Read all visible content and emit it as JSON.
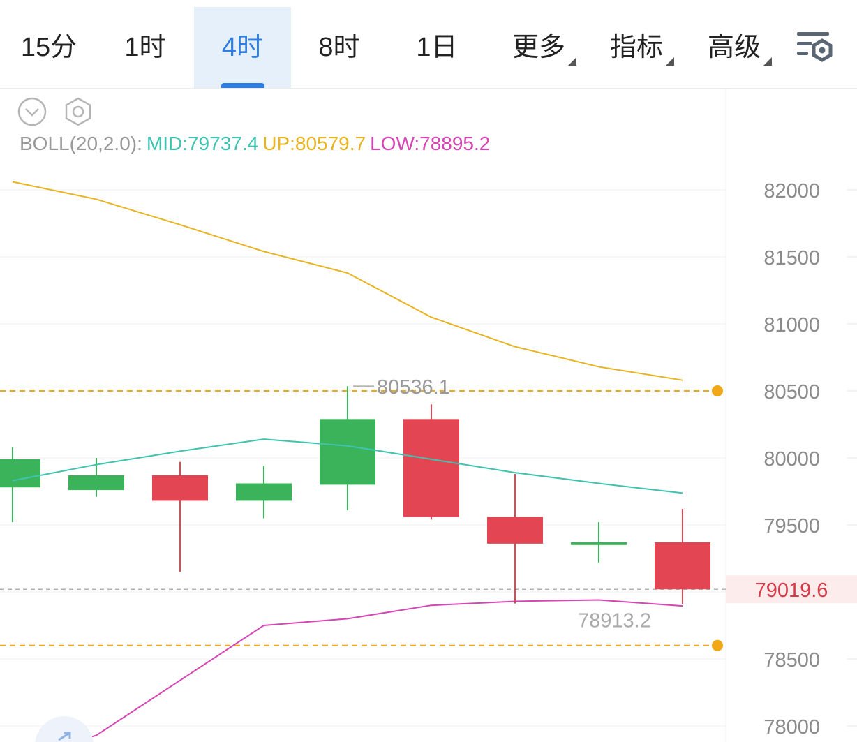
{
  "tabs": [
    {
      "label": "15分",
      "active": false,
      "dropdown": false
    },
    {
      "label": "1时",
      "active": false,
      "dropdown": false
    },
    {
      "label": "4时",
      "active": true,
      "dropdown": false
    },
    {
      "label": "8时",
      "active": false,
      "dropdown": false
    },
    {
      "label": "1日",
      "active": false,
      "dropdown": false
    },
    {
      "label": "更多",
      "active": false,
      "dropdown": true
    },
    {
      "label": "指标",
      "active": false,
      "dropdown": true
    },
    {
      "label": "高级",
      "active": false,
      "dropdown": true
    }
  ],
  "toolbar": {
    "collapse_icon": "chevron-down-circle-icon",
    "settings_icon": "hexagon-settings-icon",
    "chart_settings_icon": "chart-settings-icon"
  },
  "legend": {
    "boll_label": "BOLL(20,2.0):",
    "mid_label": "MID:79737.4",
    "up_label": "UP:80579.7",
    "low_label": "LOW:78895.2"
  },
  "colors": {
    "up_candle": "#3bb35a",
    "down_candle": "#e34652",
    "mid": "#3fc3b0",
    "upper": "#e8b320",
    "lower": "#d446b4",
    "accent": "#2f7de1",
    "current_price": "#d63b47",
    "dashed_line": "#f0a818"
  },
  "chart_data": {
    "type": "candlestick",
    "y_axis": {
      "ticks": [
        82000,
        81500,
        81000,
        80500,
        80000,
        79500,
        79000,
        78500,
        78000
      ],
      "tick_labels": [
        "82000",
        "81500",
        "81000",
        "80500",
        "80000",
        "79500",
        "",
        "78500",
        "78000"
      ],
      "range": [
        77900,
        82300
      ]
    },
    "candles": [
      {
        "open": 79780,
        "close": 79990,
        "high": 80080,
        "low": 79520
      },
      {
        "open": 79760,
        "close": 79870,
        "high": 80000,
        "low": 79710
      },
      {
        "open": 79870,
        "close": 79680,
        "high": 79970,
        "low": 79150
      },
      {
        "open": 79680,
        "close": 79810,
        "high": 79940,
        "low": 79550
      },
      {
        "open": 79800,
        "close": 80290,
        "high": 80536.1,
        "low": 79610
      },
      {
        "open": 80290,
        "close": 79560,
        "high": 80400,
        "low": 79540
      },
      {
        "open": 79560,
        "close": 79360,
        "high": 79880,
        "low": 78913.2
      },
      {
        "open": 79350,
        "close": 79370,
        "high": 79520,
        "low": 79220
      },
      {
        "open": 79370,
        "close": 79019.6,
        "high": 79620,
        "low": 78910
      }
    ],
    "bollinger": {
      "mid": [
        79830,
        79950,
        80050,
        80140,
        80090,
        79990,
        79890,
        79810,
        79737.4
      ],
      "upper": [
        82060,
        81930,
        81740,
        81540,
        81380,
        81050,
        80830,
        80680,
        80579.7
      ],
      "lower": [
        77740,
        77930,
        78340,
        78750,
        78800,
        78900,
        78930,
        78940,
        78895.2
      ]
    },
    "annotations": {
      "high_label": "80536.1",
      "low_label": "78913.2",
      "current_price": "79019.6",
      "dashed_upper": 80500,
      "dashed_lower": 78600
    }
  }
}
